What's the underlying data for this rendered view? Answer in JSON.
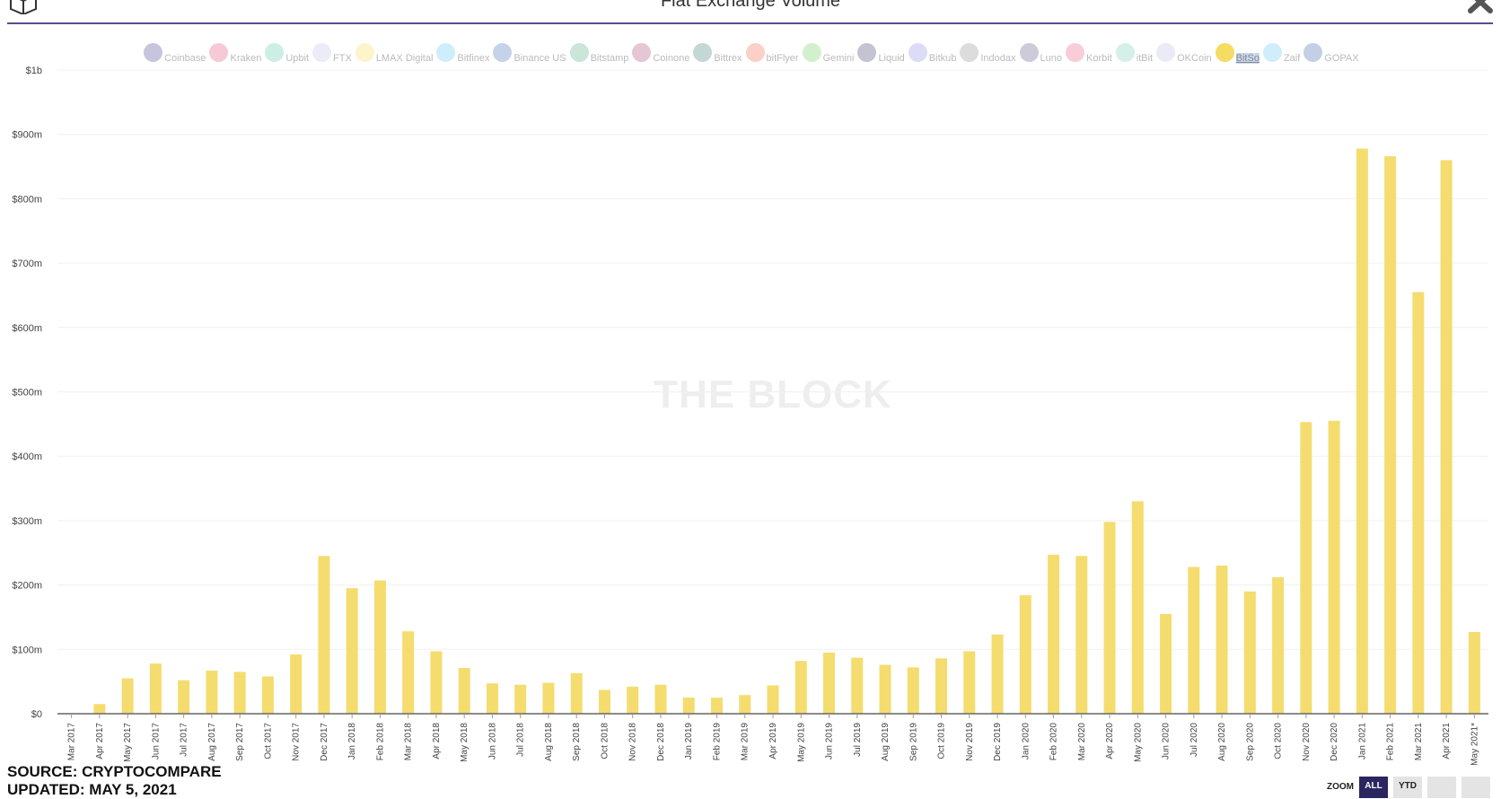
{
  "header": {
    "title": "Fiat Exchange Volume",
    "source": "SOURCE: CRYPTOCOMPARE",
    "updated": "UPDATED: MAY 5, 2021",
    "watermark": "THE BLOCK"
  },
  "legend": [
    {
      "label": "Coinbase",
      "color": "#c7c4dd"
    },
    {
      "label": "Kraken",
      "color": "#f7c9d6"
    },
    {
      "label": "Upbit",
      "color": "#cdeee4"
    },
    {
      "label": "FTX",
      "color": "#ecebf8"
    },
    {
      "label": "LMAX Digital",
      "color": "#fdf4cc"
    },
    {
      "label": "Bitfinex",
      "color": "#cfeefc"
    },
    {
      "label": "Binance US",
      "color": "#c6d2ea"
    },
    {
      "label": "Bitstamp",
      "color": "#c9e6d8"
    },
    {
      "label": "Coinone",
      "color": "#e6c6d4"
    },
    {
      "label": "Bittrex",
      "color": "#c5d6d6"
    },
    {
      "label": "bitFlyer",
      "color": "#fbd0c6"
    },
    {
      "label": "Gemini",
      "color": "#d3f0cd"
    },
    {
      "label": "Liquid",
      "color": "#c4c3d1"
    },
    {
      "label": "Bitkub",
      "color": "#dcdcf6"
    },
    {
      "label": "Indodax",
      "color": "#dcdcdc"
    },
    {
      "label": "Luno",
      "color": "#cdcbd9"
    },
    {
      "label": "Korbit",
      "color": "#f8cdd8"
    },
    {
      "label": "itBit",
      "color": "#d5efe9"
    },
    {
      "label": "OKCoin",
      "color": "#ebebf7"
    },
    {
      "label": "BitSo",
      "color": "#f5dc63"
    },
    {
      "label": "Zaif",
      "color": "#cfedfb"
    },
    {
      "label": "GOPAX",
      "color": "#c3cfe6"
    }
  ],
  "zoom": {
    "label": "ZOOM",
    "buttons": [
      "ALL",
      "YTD",
      "",
      ""
    ]
  },
  "chart_data": {
    "type": "bar",
    "title": "Fiat Exchange Volume",
    "active_series": "BitSo",
    "bar_color": "#f5dc6e",
    "grid": true,
    "ylim": [
      0,
      1000
    ],
    "y_ticks": [
      "$0",
      "$100m",
      "$200m",
      "$300m",
      "$400m",
      "$500m",
      "$600m",
      "$700m",
      "$800m",
      "$900m",
      "$1b"
    ],
    "categories": [
      "Mar 2017",
      "Apr 2017",
      "May 2017",
      "Jun 2017",
      "Jul 2017",
      "Aug 2017",
      "Sep 2017",
      "Oct 2017",
      "Nov 2017",
      "Dec 2017",
      "Jan 2018",
      "Feb 2018",
      "Mar 2018",
      "Apr 2018",
      "May 2018",
      "Jun 2018",
      "Jul 2018",
      "Aug 2018",
      "Sep 2018",
      "Oct 2018",
      "Nov 2018",
      "Dec 2018",
      "Jan 2019",
      "Feb 2019",
      "Mar 2019",
      "Apr 2019",
      "May 2019",
      "Jun 2019",
      "Jul 2019",
      "Aug 2019",
      "Sep 2019",
      "Oct 2019",
      "Nov 2019",
      "Dec 2019",
      "Jan 2020",
      "Feb 2020",
      "Mar 2020",
      "Apr 2020",
      "May 2020",
      "Jun 2020",
      "Jul 2020",
      "Aug 2020",
      "Sep 2020",
      "Oct 2020",
      "Nov 2020",
      "Dec 2020",
      "Jan 2021",
      "Feb 2021",
      "Mar 2021",
      "Apr 2021",
      "May 2021*"
    ],
    "series": [
      {
        "name": "BitSo",
        "values": [
          0,
          15,
          55,
          78,
          52,
          67,
          65,
          58,
          92,
          245,
          195,
          207,
          128,
          97,
          71,
          47,
          45,
          48,
          63,
          37,
          42,
          45,
          25,
          25,
          29,
          44,
          82,
          95,
          87,
          76,
          72,
          86,
          97,
          123,
          184,
          247,
          245,
          298,
          330,
          155,
          228,
          230,
          190,
          212,
          453,
          455,
          878,
          866,
          655,
          860,
          127
        ]
      }
    ]
  }
}
